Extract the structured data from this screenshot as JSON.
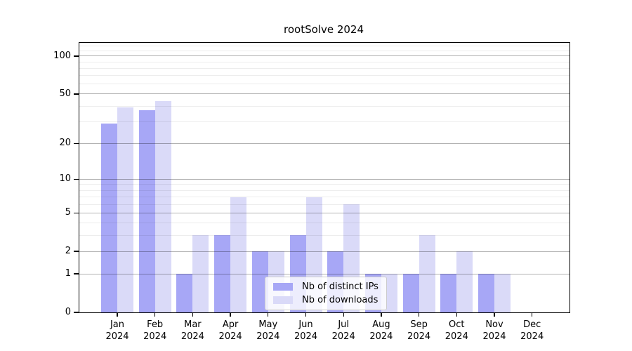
{
  "title": "rootSolve 2024",
  "legend": {
    "items": [
      {
        "label": "Nb of distinct IPs",
        "color": "#a7a7f6"
      },
      {
        "label": "Nb of downloads",
        "color": "#dadaf8"
      }
    ]
  },
  "chart_data": {
    "type": "bar",
    "title": "rootSolve 2024",
    "categories": [
      "Jan",
      "Feb",
      "Mar",
      "Apr",
      "May",
      "Jun",
      "Jul",
      "Aug",
      "Sep",
      "Oct",
      "Nov",
      "Dec"
    ],
    "category_year": "2024",
    "series": [
      {
        "name": "Nb of distinct IPs",
        "color": "#a7a7f6",
        "values": [
          29,
          37,
          1,
          3,
          2,
          3,
          2,
          1,
          1,
          1,
          1,
          0
        ]
      },
      {
        "name": "Nb of downloads",
        "color": "#dadaf8",
        "values": [
          39,
          44,
          3,
          7,
          2,
          7,
          6,
          1,
          3,
          2,
          1,
          0
        ]
      }
    ],
    "y_scale": "log10(1+x)",
    "y_ticks": [
      0,
      1,
      2,
      5,
      10,
      20,
      50,
      100
    ],
    "y_minor_ticks": [
      3,
      4,
      6,
      7,
      8,
      9,
      30,
      40,
      60,
      70,
      80,
      90,
      110,
      120
    ],
    "ylim": [
      0,
      127.5
    ],
    "grid": "on",
    "legend_position": "lower center"
  },
  "colors": {
    "axis": "#000000",
    "background": "#ffffff",
    "major_grid": "rgba(0,0,0,0.30)",
    "minor_grid": "rgba(0,0,0,0.07)"
  }
}
